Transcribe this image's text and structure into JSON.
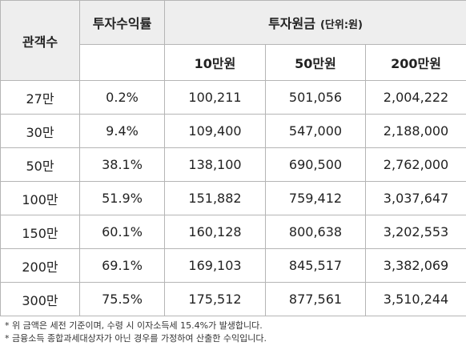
{
  "header": {
    "col_audience": "관객수",
    "col_return": "투자수익률",
    "col_principal": "투자원금",
    "unit": "(단위:원)",
    "sub_10": "10만원",
    "sub_50": "50만원",
    "sub_200": "200만원"
  },
  "rows": [
    {
      "audience": "27만",
      "rate": "0.2%",
      "v10": "100,211",
      "v50": "501,056",
      "v200": "2,004,222"
    },
    {
      "audience": "30만",
      "rate": "9.4%",
      "v10": "109,400",
      "v50": "547,000",
      "v200": "2,188,000"
    },
    {
      "audience": "50만",
      "rate": "38.1%",
      "v10": "138,100",
      "v50": "690,500",
      "v200": "2,762,000"
    },
    {
      "audience": "100만",
      "rate": "51.9%",
      "v10": "151,882",
      "v50": "759,412",
      "v200": "3,037,647"
    },
    {
      "audience": "150만",
      "rate": "60.1%",
      "v10": "160,128",
      "v50": "800,638",
      "v200": "3,202,553"
    },
    {
      "audience": "200만",
      "rate": "69.1%",
      "v10": "169,103",
      "v50": "845,517",
      "v200": "3,382,069"
    },
    {
      "audience": "300만",
      "rate": "75.5%",
      "v10": "175,512",
      "v50": "877,561",
      "v200": "3,510,244"
    }
  ],
  "notes": [
    "* 위 금액은 세전 기준이며, 수령 시 이자소득세 15.4%가 발생합니다.",
    "* 금융소득 종합과세대상자가 아닌 경우를 가정하여 산출한 수익입니다."
  ],
  "colors": {
    "accent": "#4fd1c5",
    "header_bg": "#eeeeee",
    "border": "#b5b5b5"
  }
}
